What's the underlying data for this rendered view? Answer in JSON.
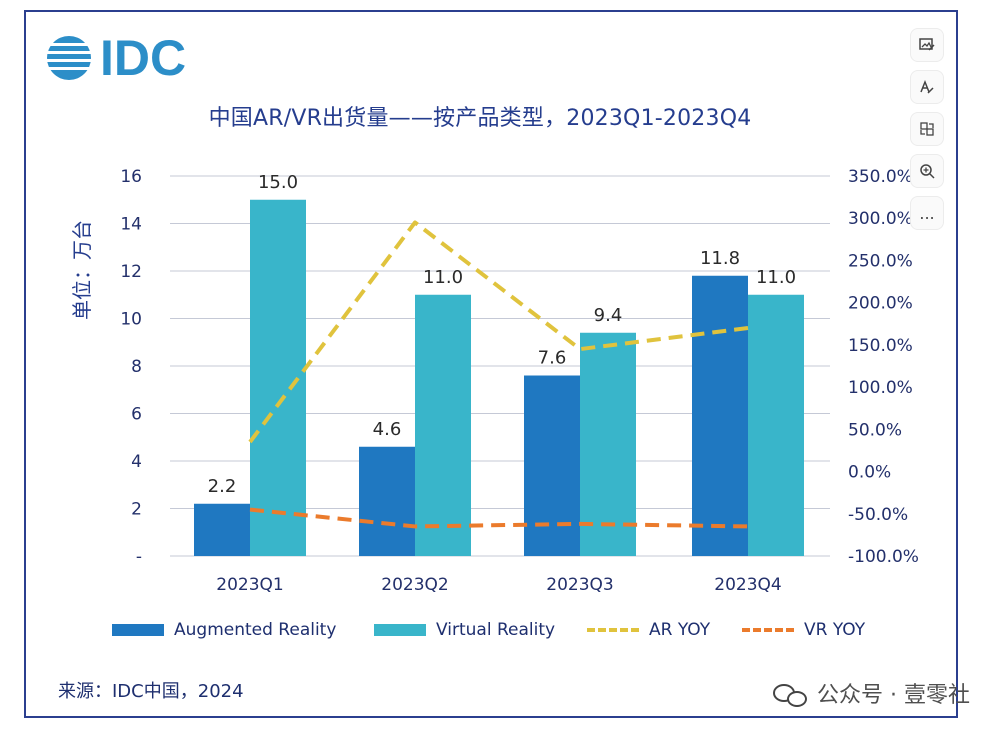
{
  "logo": {
    "text": "IDC"
  },
  "chart_data": {
    "type": "bar",
    "title": "中国AR/VR出货量——按产品类型，2023Q1-2023Q4",
    "ylabel": "单位：万台",
    "categories": [
      "2023Q1",
      "2023Q2",
      "2023Q3",
      "2023Q4"
    ],
    "left_axis": {
      "ticks": [
        "16",
        "14",
        "12",
        "10",
        "8",
        "6",
        "4",
        "2",
        "-"
      ],
      "range": [
        0,
        16
      ]
    },
    "right_axis": {
      "ticks": [
        "350.0%",
        "300.0%",
        "250.0%",
        "200.0%",
        "150.0%",
        "100.0%",
        "50.0%",
        "0.0%",
        "-50.0%",
        "-100.0%"
      ],
      "range": [
        -100,
        350
      ]
    },
    "series": [
      {
        "name": "Augmented Reality",
        "type": "bar",
        "values": [
          2.2,
          4.6,
          7.6,
          11.8
        ],
        "labels": [
          "2.2",
          "4.6",
          "7.6",
          "11.8"
        ],
        "color": "#1f78c1"
      },
      {
        "name": "Virtual Reality",
        "type": "bar",
        "values": [
          15.0,
          11.0,
          9.4,
          11.0
        ],
        "labels": [
          "15.0",
          "11.0",
          "9.4",
          "11.0"
        ],
        "color": "#39b5ca"
      },
      {
        "name": "AR YOY",
        "type": "line",
        "axis": "right",
        "values": [
          35,
          295,
          145,
          170
        ],
        "color": "#e0c33d"
      },
      {
        "name": "VR YOY",
        "type": "line",
        "axis": "right",
        "values": [
          -45,
          -65,
          -62,
          -65
        ],
        "color": "#eb7b2c"
      }
    ],
    "grid": true,
    "legend_position": "bottom"
  },
  "legend": [
    {
      "label": "Augmented Reality",
      "color": "#1f78c1",
      "kind": "bar"
    },
    {
      "label": "Virtual Reality",
      "color": "#39b5ca",
      "kind": "bar"
    },
    {
      "label": "AR YOY",
      "color": "#e0c33d",
      "kind": "line"
    },
    {
      "label": "VR YOY",
      "color": "#eb7b2c",
      "kind": "line"
    }
  ],
  "source": "来源：IDC中国，2024",
  "watermark": "公众号 · 壹零社",
  "toolbar": [
    {
      "icon": "image-edit-icon"
    },
    {
      "icon": "text-edit-icon"
    },
    {
      "icon": "swap-icon"
    },
    {
      "icon": "zoom-in-icon"
    },
    {
      "icon": "more-icon",
      "label": "..."
    }
  ]
}
